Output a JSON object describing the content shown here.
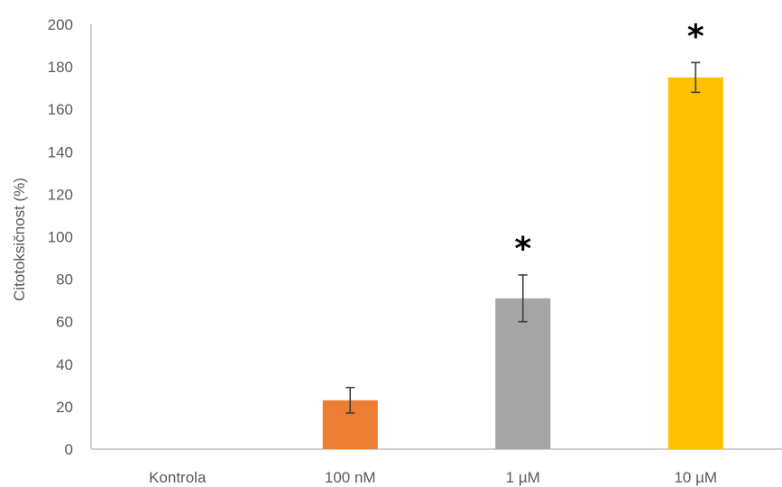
{
  "chart_data": {
    "type": "bar",
    "title": "",
    "xlabel": "",
    "ylabel": "Citotoksičnost (%)",
    "ylim": [
      0,
      200
    ],
    "yticks": [
      0,
      20,
      40,
      60,
      80,
      100,
      120,
      140,
      160,
      180,
      200
    ],
    "categories": [
      "Kontrola",
      "100 nM",
      "1 µM",
      "10 µM"
    ],
    "values": [
      0,
      23,
      71,
      175
    ],
    "errors": [
      0,
      6,
      11,
      7
    ],
    "colors": [
      "#4472c4",
      "#ed7d31",
      "#a5a5a5",
      "#ffc000"
    ],
    "significance": [
      "",
      "",
      "*",
      "*"
    ],
    "grid": false,
    "legend": "none"
  }
}
